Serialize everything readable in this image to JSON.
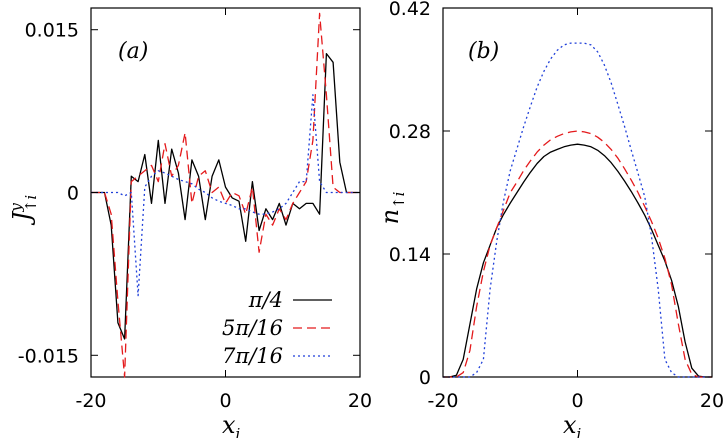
{
  "chart_data": [
    {
      "type": "line",
      "panel_label": "(a)",
      "xlabel": "x",
      "xlabel_sub": "i",
      "ylabel": "J",
      "ylabel_sup": "y",
      "ylabel_sub": "↑i",
      "xlim": [
        -20,
        20
      ],
      "ylim": [
        -0.017,
        0.017
      ],
      "xticks": [
        -20,
        0,
        20
      ],
      "xtick_labels": [
        "-20",
        "0",
        "20"
      ],
      "yticks": [
        -0.015,
        0,
        0.015
      ],
      "ytick_labels": [
        "-0.015",
        "0",
        "0.015"
      ],
      "grid": false,
      "legend_position": "bottom-right",
      "series": [
        {
          "name": "π/4",
          "color": "#000000",
          "dash": "solid",
          "x": [
            -20,
            -19,
            -18,
            -17,
            -16,
            -15,
            -14,
            -13,
            -12,
            -11,
            -10,
            -9,
            -8,
            -7,
            -6,
            -5,
            -4,
            -3,
            -2,
            -1,
            0,
            1,
            2,
            3,
            4,
            5,
            6,
            7,
            8,
            9,
            10,
            11,
            12,
            13,
            14,
            15,
            16,
            17,
            18,
            19,
            20
          ],
          "y": [
            0,
            0,
            0,
            -0.003,
            -0.012,
            -0.0135,
            0.0015,
            0.001,
            0.0035,
            -0.001,
            0.0048,
            -0.001,
            0.004,
            0.0018,
            -0.0025,
            0.003,
            0.0015,
            -0.0025,
            0.0015,
            0.003,
            0.0005,
            -0.0005,
            -0.0008,
            -0.0045,
            0.001,
            -0.0035,
            -0.0015,
            -0.0025,
            -0.001,
            -0.003,
            -0.001,
            -0.0015,
            -0.001,
            -0.001,
            -0.002,
            0.0128,
            0.012,
            0.0028,
            0,
            0,
            0
          ]
        },
        {
          "name": "5π/16",
          "color": "#e41a1c",
          "dash": "dashed",
          "x": [
            -20,
            -19,
            -18,
            -17,
            -16,
            -15,
            -14,
            -13,
            -12,
            -11,
            -10,
            -9,
            -8,
            -7,
            -6,
            -5,
            -4,
            -3,
            -2,
            -1,
            0,
            1,
            2,
            3,
            4,
            5,
            6,
            7,
            8,
            9,
            10,
            11,
            12,
            13,
            14,
            15,
            16,
            17,
            18,
            19,
            20
          ],
          "y": [
            0,
            0,
            0,
            -0.002,
            -0.01,
            -0.017,
            0.001,
            0.0015,
            0.002,
            0.0025,
            0.001,
            0.0045,
            0.0015,
            0.0025,
            0.0055,
            -0.001,
            0.0015,
            0.002,
            0,
            0.0005,
            -0.001,
            0,
            -0.0003,
            -0.002,
            0.0005,
            -0.0055,
            -0.002,
            -0.003,
            -0.0015,
            -0.0025,
            -0.001,
            0,
            0.001,
            0.0048,
            0.0165,
            0.009,
            0.0005,
            0,
            0,
            0,
            0
          ]
        },
        {
          "name": "7π/16",
          "color": "#1f3fd9",
          "dash": "dotted",
          "x": [
            -20,
            -19,
            -18,
            -17,
            -16,
            -15,
            -14,
            -13,
            -12,
            -11,
            -10,
            -9,
            -8,
            -7,
            -6,
            -5,
            -4,
            -3,
            -2,
            -1,
            0,
            1,
            2,
            3,
            4,
            5,
            6,
            7,
            8,
            9,
            10,
            11,
            12,
            13,
            14,
            15,
            16,
            17,
            18,
            19,
            20
          ],
          "y": [
            0,
            0,
            0,
            0,
            0,
            -0.0003,
            0,
            -0.0095,
            0.0005,
            0.0015,
            0.002,
            0.0018,
            0.0015,
            0.0012,
            0.001,
            0.0008,
            0.0003,
            0,
            -0.0005,
            -0.0008,
            -0.001,
            -0.0012,
            -0.0015,
            -0.0015,
            -0.0018,
            -0.002,
            -0.002,
            -0.0018,
            -0.0015,
            -0.001,
            0,
            0.001,
            0.001,
            0.009,
            0.001,
            0,
            0,
            0,
            0,
            0,
            0
          ]
        }
      ]
    },
    {
      "type": "line",
      "panel_label": "(b)",
      "xlabel": "x",
      "xlabel_sub": "i",
      "ylabel": "n",
      "ylabel_sub": "↑i",
      "xlim": [
        -20,
        20
      ],
      "ylim": [
        0,
        0.42
      ],
      "xticks": [
        -20,
        0,
        20
      ],
      "xtick_labels": [
        "-20",
        "0",
        "20"
      ],
      "yticks": [
        0,
        0.14,
        0.28,
        0.42
      ],
      "ytick_labels": [
        "0",
        "0.14",
        "0.28",
        "0.42"
      ],
      "grid": false,
      "series": [
        {
          "name": "π/4",
          "color": "#000000",
          "dash": "solid",
          "x": [
            -20,
            -19,
            -18,
            -17,
            -16,
            -15,
            -14,
            -13,
            -12,
            -11,
            -10,
            -9,
            -8,
            -7,
            -6,
            -5,
            -4,
            -3,
            -2,
            -1,
            0,
            1,
            2,
            3,
            4,
            5,
            6,
            7,
            8,
            9,
            10,
            11,
            12,
            13,
            14,
            15,
            16,
            17,
            18,
            19,
            20
          ],
          "y": [
            0,
            0,
            0.002,
            0.02,
            0.06,
            0.1,
            0.13,
            0.15,
            0.17,
            0.185,
            0.198,
            0.21,
            0.222,
            0.233,
            0.243,
            0.251,
            0.256,
            0.259,
            0.262,
            0.264,
            0.265,
            0.264,
            0.262,
            0.258,
            0.252,
            0.244,
            0.234,
            0.223,
            0.211,
            0.198,
            0.184,
            0.168,
            0.15,
            0.132,
            0.11,
            0.08,
            0.04,
            0.01,
            0.001,
            0,
            0
          ]
        },
        {
          "name": "5π/16",
          "color": "#e41a1c",
          "dash": "dashed",
          "x": [
            -20,
            -19,
            -18,
            -17,
            -16,
            -15,
            -14,
            -13,
            -12,
            -11,
            -10,
            -9,
            -8,
            -7,
            -6,
            -5,
            -4,
            -3,
            -2,
            -1,
            0,
            1,
            2,
            3,
            4,
            5,
            6,
            7,
            8,
            9,
            10,
            11,
            12,
            13,
            14,
            15,
            16,
            17,
            18,
            19,
            20
          ],
          "y": [
            0,
            0,
            0,
            0.005,
            0.03,
            0.08,
            0.12,
            0.15,
            0.17,
            0.19,
            0.21,
            0.222,
            0.235,
            0.246,
            0.256,
            0.264,
            0.27,
            0.274,
            0.277,
            0.279,
            0.28,
            0.279,
            0.277,
            0.273,
            0.267,
            0.259,
            0.249,
            0.237,
            0.224,
            0.21,
            0.194,
            0.177,
            0.158,
            0.135,
            0.105,
            0.06,
            0.02,
            0.003,
            0,
            0,
            0
          ]
        },
        {
          "name": "7π/16",
          "color": "#1f3fd9",
          "dash": "dotted",
          "x": [
            -20,
            -19,
            -18,
            -17,
            -16,
            -15,
            -14,
            -13,
            -12,
            -11,
            -10,
            -9,
            -8,
            -7,
            -6,
            -5,
            -4,
            -3,
            -2,
            -1,
            0,
            1,
            2,
            3,
            4,
            5,
            6,
            7,
            8,
            9,
            10,
            11,
            12,
            13,
            14,
            15,
            16,
            17,
            18,
            19,
            20
          ],
          "y": [
            0,
            0,
            0,
            0,
            0,
            0.005,
            0.02,
            0.1,
            0.155,
            0.2,
            0.235,
            0.26,
            0.285,
            0.308,
            0.33,
            0.348,
            0.362,
            0.372,
            0.378,
            0.38,
            0.38,
            0.38,
            0.378,
            0.37,
            0.355,
            0.335,
            0.31,
            0.285,
            0.258,
            0.232,
            0.205,
            0.16,
            0.1,
            0.02,
            0.005,
            0,
            0,
            0,
            0,
            0,
            0
          ]
        }
      ]
    }
  ]
}
